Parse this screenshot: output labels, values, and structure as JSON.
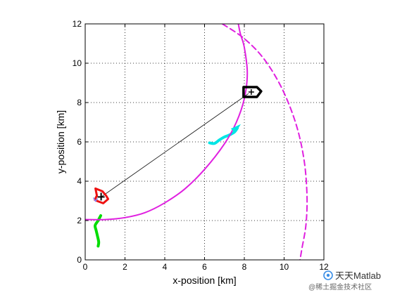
{
  "chart_data": {
    "type": "line",
    "title": "",
    "xlabel": "x-position [km]",
    "ylabel": "y-position [km]",
    "xlim": [
      0,
      12
    ],
    "ylim": [
      0,
      12
    ],
    "xticks": [
      0,
      2,
      4,
      6,
      8,
      10,
      12
    ],
    "yticks": [
      0,
      2,
      4,
      6,
      8,
      10,
      12
    ],
    "grid": true,
    "series": [
      {
        "role": "trajectory-green",
        "color": "#00dd00",
        "style": "solid-thick",
        "points": [
          [
            0.65,
            0.7
          ],
          [
            0.68,
            0.9
          ],
          [
            0.62,
            1.2
          ],
          [
            0.55,
            1.5
          ],
          [
            0.5,
            1.75
          ],
          [
            0.65,
            2.0
          ],
          [
            0.78,
            2.25
          ]
        ]
      },
      {
        "role": "trajectory-cyan",
        "color": "#00e5e5",
        "style": "solid-thick",
        "points": [
          [
            6.25,
            5.95
          ],
          [
            6.5,
            5.92
          ],
          [
            6.75,
            6.1
          ],
          [
            7.0,
            6.25
          ],
          [
            7.25,
            6.35
          ],
          [
            7.5,
            6.5
          ],
          [
            7.65,
            6.7
          ]
        ]
      },
      {
        "role": "circle-solid",
        "color": "#e020e0",
        "style": "solid",
        "points": [
          [
            0,
            2.05
          ],
          [
            1,
            2.05
          ],
          [
            2.0,
            2.15
          ],
          [
            3.0,
            2.4
          ],
          [
            4.0,
            2.9
          ],
          [
            5.0,
            3.6
          ],
          [
            6.0,
            4.6
          ],
          [
            7.0,
            5.9
          ],
          [
            7.6,
            7.0
          ],
          [
            8.0,
            8.2
          ],
          [
            8.15,
            9.5
          ],
          [
            8.0,
            10.8
          ],
          [
            7.8,
            11.5
          ],
          [
            7.7,
            12.0
          ]
        ]
      },
      {
        "role": "circle-dashed",
        "color": "#e020e0",
        "style": "dashed",
        "points": [
          [
            6.9,
            12.0
          ],
          [
            8.0,
            11.25
          ],
          [
            9.0,
            10.2
          ],
          [
            9.9,
            8.7
          ],
          [
            10.6,
            6.9
          ],
          [
            11.0,
            5.1
          ],
          [
            11.15,
            3.3
          ],
          [
            11.1,
            1.8
          ],
          [
            10.9,
            0.6
          ],
          [
            10.8,
            0
          ]
        ]
      },
      {
        "role": "line-of-sight",
        "color": "#000000",
        "style": "thin",
        "points": [
          [
            0.8,
            3.2
          ],
          [
            8.2,
            8.45
          ]
        ]
      }
    ],
    "markers": [
      {
        "role": "ship-black",
        "color": "#000000",
        "center": [
          8.35,
          8.5
        ]
      },
      {
        "role": "target-red",
        "color": "#ee1111",
        "center": [
          0.8,
          3.2
        ]
      }
    ]
  },
  "watermark": {
    "title": "天天Matlab",
    "subtitle": "@稀土掘金技术社区"
  }
}
